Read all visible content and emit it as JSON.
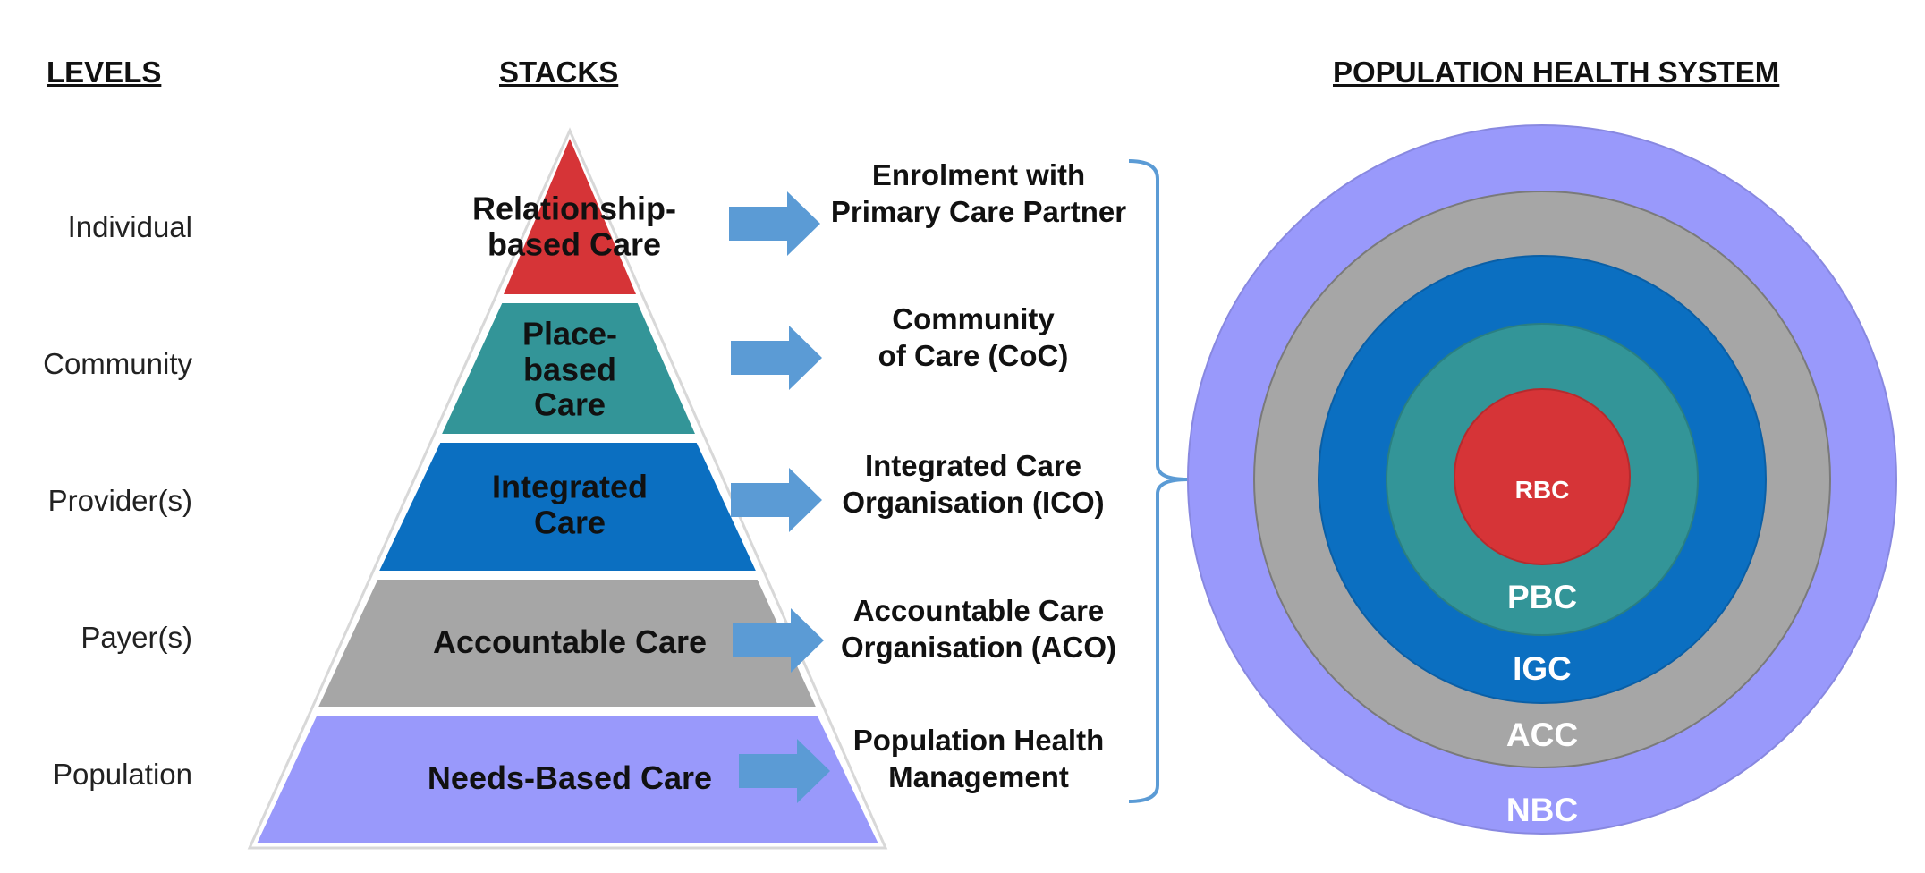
{
  "headers": {
    "levels": "LEVELS",
    "stacks": "STACKS",
    "system": "POPULATION HEALTH SYSTEM"
  },
  "levels": [
    "Individual",
    "Community",
    "Provider(s)",
    "Payer(s)",
    "Population"
  ],
  "pyramid": [
    {
      "line1": "Relationship-",
      "line2": "based Care",
      "line3": "",
      "color": "#d63437"
    },
    {
      "line1": "Place-",
      "line2": "based",
      "line3": "Care",
      "color": "#339598"
    },
    {
      "line1": "Integrated",
      "line2": "Care",
      "line3": "",
      "color": "#0b6fc1"
    },
    {
      "line1": "Accountable Care",
      "line2": "",
      "line3": "",
      "color": "#a6a6a6"
    },
    {
      "line1": "Needs-Based Care",
      "line2": "",
      "line3": "",
      "color": "#9999fb"
    }
  ],
  "outcomes": [
    {
      "line1": "Enrolment with",
      "line2": "Primary Care Partner"
    },
    {
      "line1": "Community",
      "line2": "of Care (CoC)"
    },
    {
      "line1": "Integrated Care",
      "line2": "Organisation (ICO)"
    },
    {
      "line1": "Accountable Care",
      "line2": "Organisation (ACO)"
    },
    {
      "line1": "Population Health",
      "line2": "Management"
    }
  ],
  "rings": [
    {
      "label": "NBC",
      "color": "#9999fb"
    },
    {
      "label": "ACC",
      "color": "#a6a6a6"
    },
    {
      "label": "IGC",
      "color": "#0b6fc1"
    },
    {
      "label": "PBC",
      "color": "#339598"
    },
    {
      "label": "RBC",
      "color": "#d63437"
    }
  ],
  "arrow_color": "#5b9bd5"
}
